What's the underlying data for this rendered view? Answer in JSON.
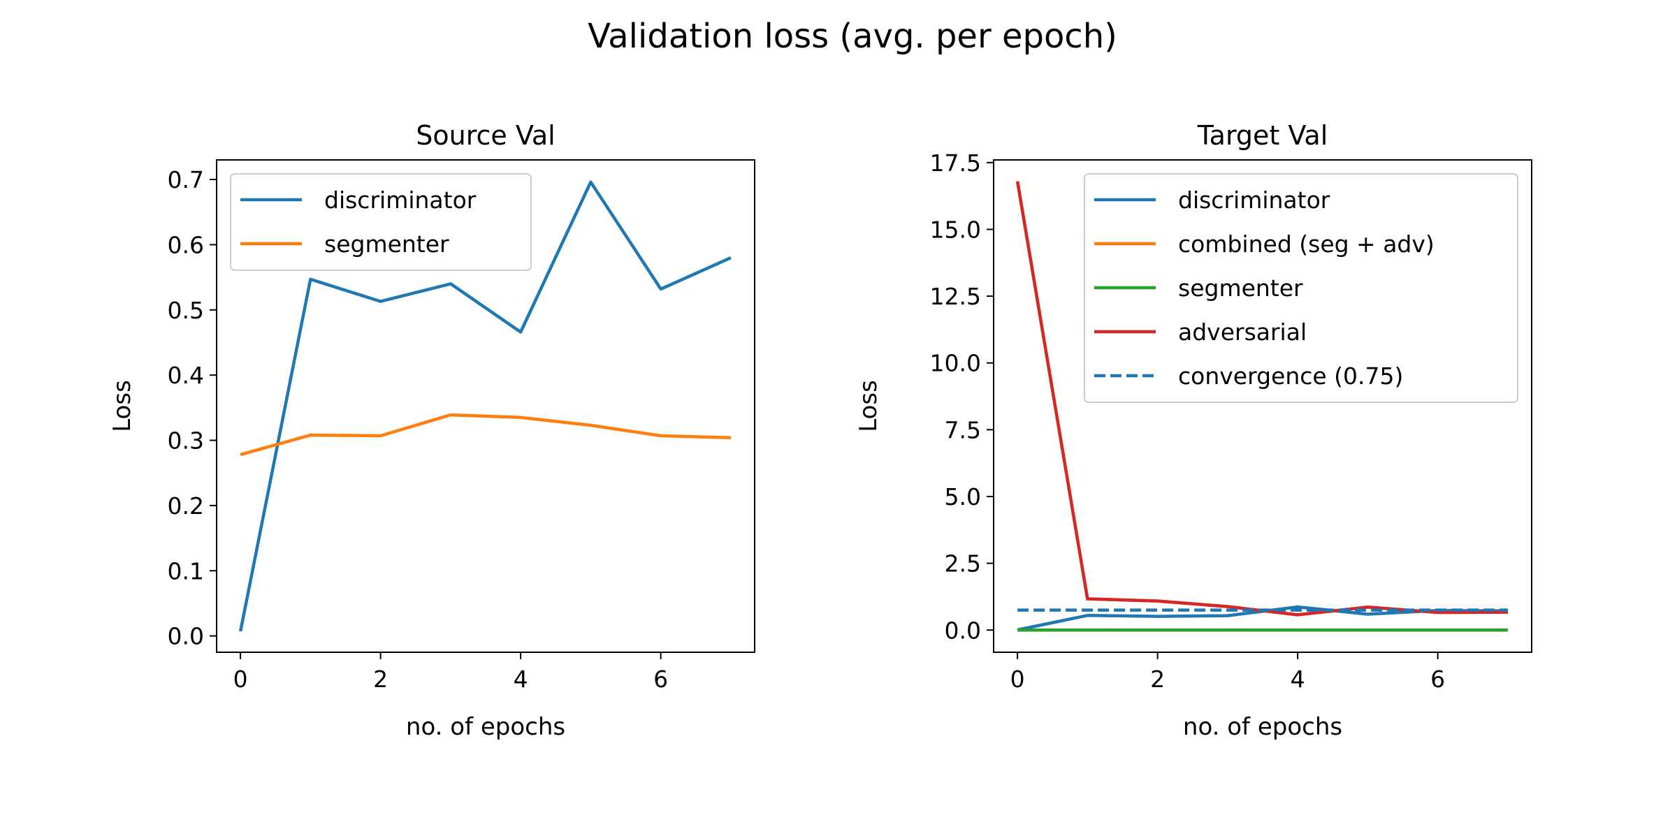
{
  "figure": {
    "title": "Validation loss (avg. per epoch)"
  },
  "chart_data": [
    {
      "type": "line",
      "title": "Source Val",
      "xlabel": "no. of epochs",
      "ylabel": "Loss",
      "xlim": [
        -0.34,
        7.34
      ],
      "ylim": [
        -0.025,
        0.73
      ],
      "xticks": [
        0,
        2,
        4,
        6
      ],
      "yticks": [
        0.0,
        0.1,
        0.2,
        0.3,
        0.4,
        0.5,
        0.6,
        0.7
      ],
      "ytick_decimals": 1,
      "grid": false,
      "legend_position": "top-left",
      "x": [
        0,
        1,
        2,
        3,
        4,
        5,
        6,
        7
      ],
      "series": [
        {
          "name": "discriminator",
          "color": "#1f77b4",
          "style": "solid",
          "values": [
            0.007,
            0.547,
            0.513,
            0.54,
            0.466,
            0.696,
            0.532,
            0.58
          ]
        },
        {
          "name": "segmenter",
          "color": "#ff7f0e",
          "style": "solid",
          "values": [
            0.278,
            0.308,
            0.307,
            0.339,
            0.335,
            0.323,
            0.307,
            0.304
          ]
        }
      ]
    },
    {
      "type": "line",
      "title": "Target Val",
      "xlabel": "no. of epochs",
      "ylabel": "Loss",
      "xlim": [
        -0.34,
        7.34
      ],
      "ylim": [
        -0.83,
        17.6
      ],
      "xticks": [
        0,
        2,
        4,
        6
      ],
      "yticks": [
        0.0,
        2.5,
        5.0,
        7.5,
        10.0,
        12.5,
        15.0,
        17.5
      ],
      "ytick_decimals": 1,
      "grid": false,
      "legend_position": "top-right",
      "x": [
        0,
        1,
        2,
        3,
        4,
        5,
        6,
        7
      ],
      "series": [
        {
          "name": "discriminator",
          "color": "#1f77b4",
          "style": "solid",
          "values": [
            0.007,
            0.547,
            0.513,
            0.54,
            0.866,
            0.596,
            0.732,
            0.72
          ]
        },
        {
          "name": "combined (seg + adv)",
          "color": "#ff7f0e",
          "style": "solid",
          "values": [
            16.8,
            1.17,
            1.09,
            0.88,
            0.57,
            0.86,
            0.66,
            0.67
          ]
        },
        {
          "name": "segmenter",
          "color": "#2ca02c",
          "style": "solid",
          "values": [
            0.0,
            0.0,
            0.0,
            0.0,
            0.0,
            0.0,
            0.0,
            0.0
          ]
        },
        {
          "name": "adversarial",
          "color": "#d62728",
          "style": "solid",
          "values": [
            16.8,
            1.17,
            1.09,
            0.88,
            0.57,
            0.86,
            0.66,
            0.67
          ]
        },
        {
          "name": "convergence (0.75)",
          "color": "#1f77b4",
          "style": "dashed",
          "values": [
            0.75,
            0.75,
            0.75,
            0.75,
            0.75,
            0.75,
            0.75,
            0.75
          ]
        }
      ]
    }
  ]
}
